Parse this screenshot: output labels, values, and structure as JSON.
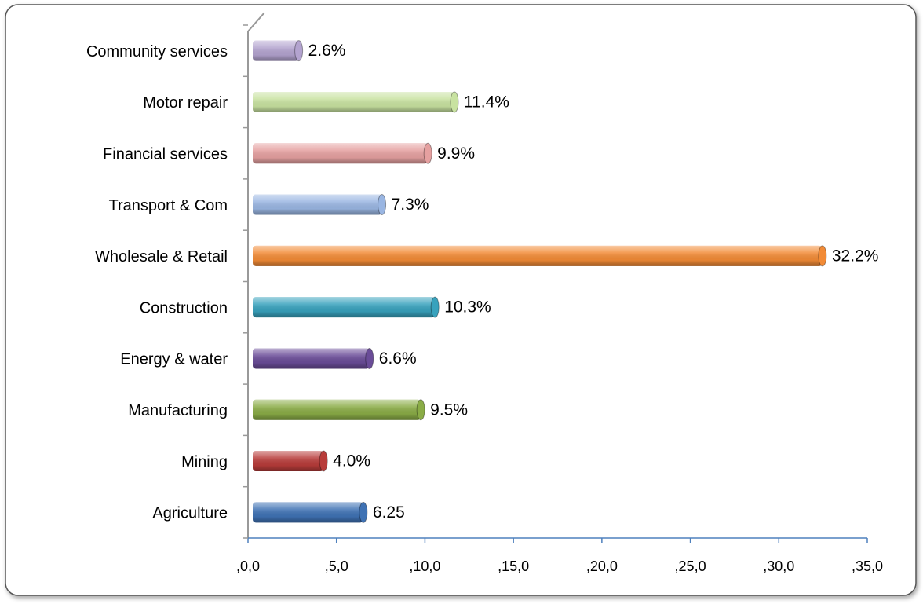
{
  "chart_data": {
    "type": "bar",
    "orientation": "horizontal",
    "categories": [
      "Agriculture",
      "Mining",
      "Manufacturing",
      "Energy & water",
      "Construction",
      "Wholesale & Retail",
      "Transport & Com",
      "Financial services",
      "Motor repair",
      "Community services"
    ],
    "values": [
      6.25,
      4.0,
      9.5,
      6.6,
      10.3,
      32.2,
      7.3,
      9.9,
      11.4,
      2.6
    ],
    "value_labels": [
      "6.25",
      "4.0%",
      "9.5%",
      "6.6%",
      "10.3%",
      "32.2%",
      "7.3%",
      "9.9%",
      "11.4%",
      "2.6%"
    ],
    "colors": [
      "#3f72b4",
      "#b83c3a",
      "#8aac46",
      "#6a4c98",
      "#38a2bd",
      "#f28b36",
      "#9ab6e2",
      "#e5a0a0",
      "#c8e2a0",
      "#b3a3cf"
    ],
    "xlim": [
      0,
      35
    ],
    "xticks": [
      {
        "value": 0,
        "label": ",0,0"
      },
      {
        "value": 5,
        "label": ",5,0"
      },
      {
        "value": 10,
        "label": ",10,0"
      },
      {
        "value": 15,
        "label": ",15,0"
      },
      {
        "value": 20,
        "label": ",20,0"
      },
      {
        "value": 25,
        "label": ",25,0"
      },
      {
        "value": 30,
        "label": ",30,0"
      },
      {
        "value": 35,
        "label": ",35,0"
      }
    ],
    "grid": false
  }
}
